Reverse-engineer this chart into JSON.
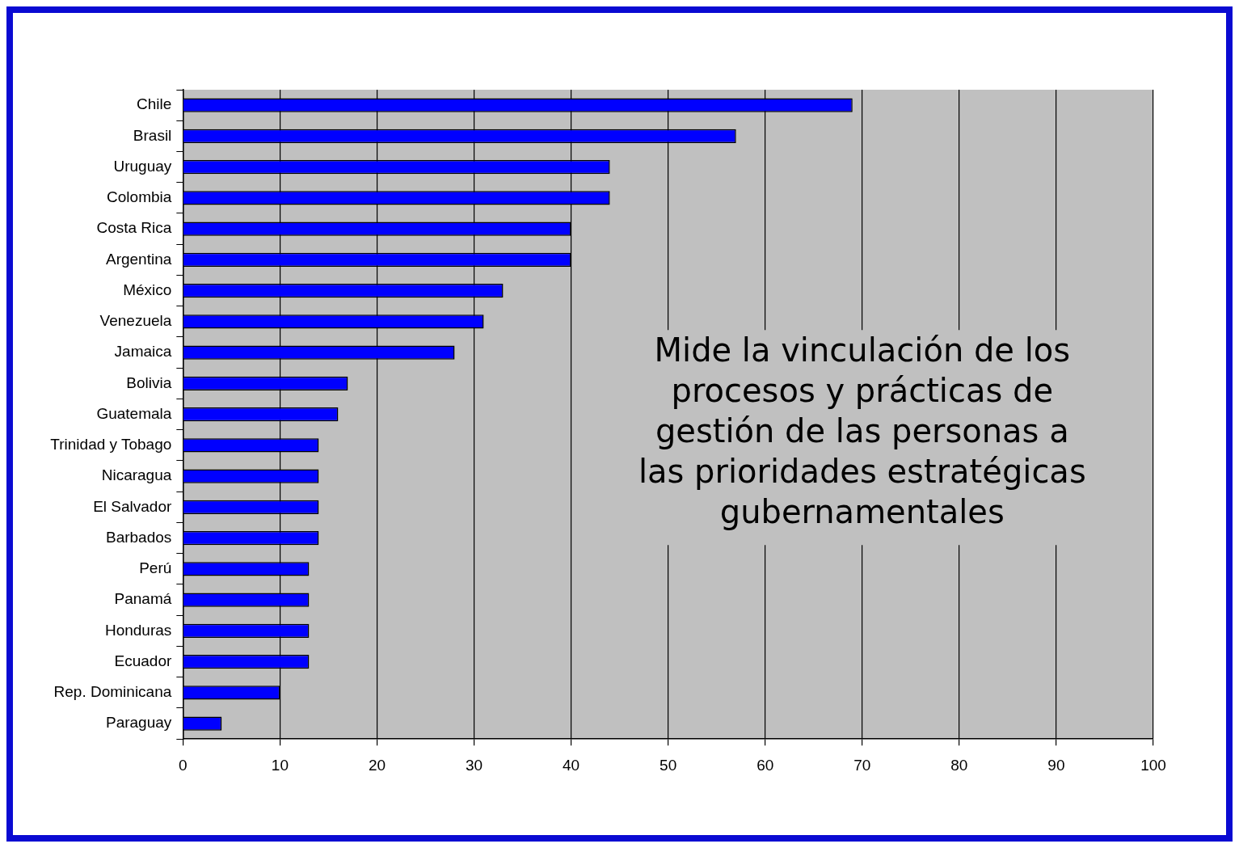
{
  "chart_data": {
    "type": "bar",
    "orientation": "horizontal",
    "categories": [
      "Chile",
      "Brasil",
      "Uruguay",
      "Colombia",
      "Costa Rica",
      "Argentina",
      "México",
      "Venezuela",
      "Jamaica",
      "Bolivia",
      "Guatemala",
      "Trinidad y Tobago",
      "Nicaragua",
      "El Salvador",
      "Barbados",
      "Perú",
      "Panamá",
      "Honduras",
      "Ecuador",
      "Rep. Dominicana",
      "Paraguay"
    ],
    "values": [
      69,
      57,
      44,
      44,
      40,
      40,
      33,
      31,
      28,
      17,
      16,
      14,
      14,
      14,
      14,
      13,
      13,
      13,
      13,
      10,
      4
    ],
    "color": "#0000ff",
    "xlim": [
      0,
      100
    ],
    "xticks": [
      0,
      10,
      20,
      30,
      40,
      50,
      60,
      70,
      80,
      90,
      100
    ],
    "grid": "x",
    "annotations": [
      "Mide la vinculación de los procesos y prácticas de gestión de las personas a las prioridades estratégicas gubernamentales"
    ]
  }
}
